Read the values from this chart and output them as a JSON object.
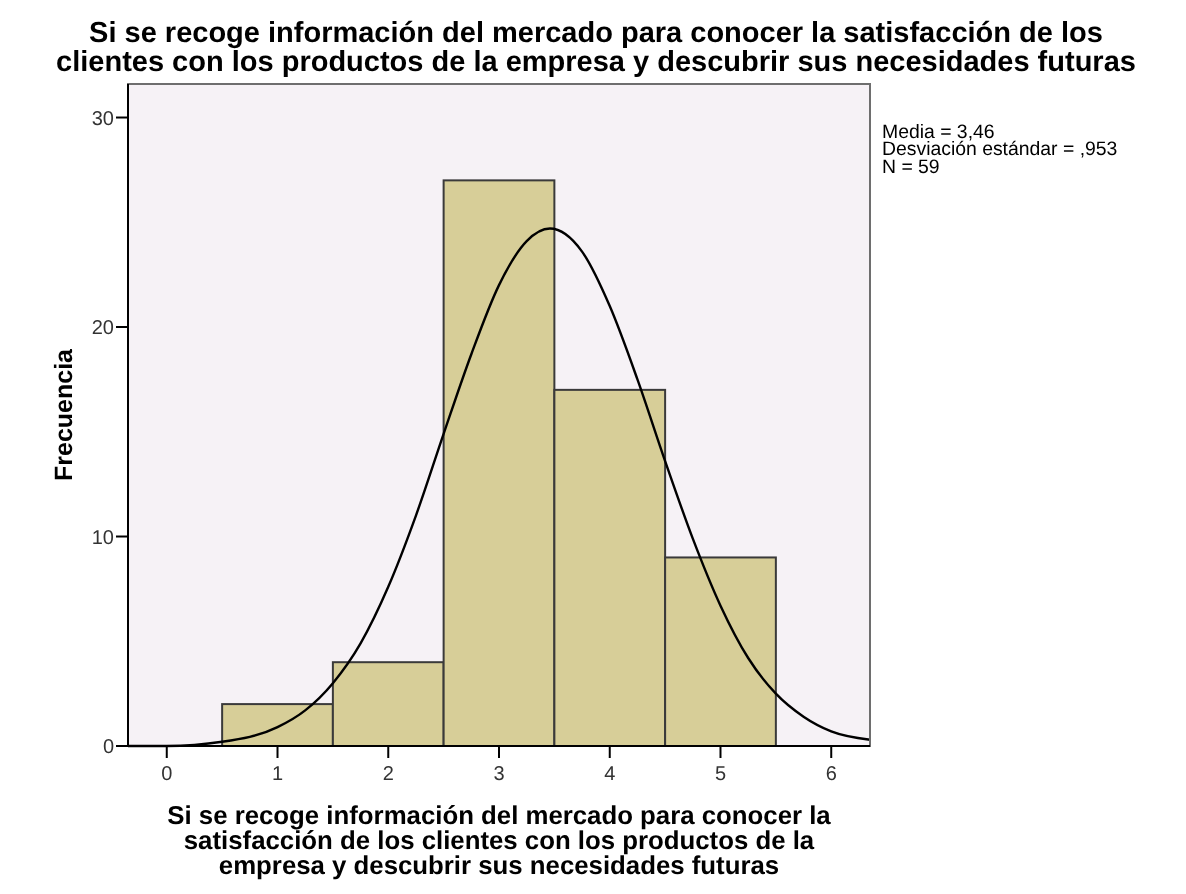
{
  "chart_data": {
    "type": "histogram",
    "title": "Si se recoge información del mercado para conocer la satisfacción de los\nclientes con los productos de la empresa y descubrir sus necesidades futuras",
    "xlabel": "Si se recoge información del mercado para conocer la\nsatisfacción de los clientes con los productos de la\nempresa y descubrir sus necesidades futuras",
    "ylabel": "Frecuencia",
    "bins": [
      0.5,
      1.5,
      2.5,
      3.5,
      4.5,
      5.5
    ],
    "values": [
      2,
      4,
      27,
      17,
      9
    ],
    "color": "#d7ce98",
    "series": [
      {
        "type": "line",
        "color": "#000000",
        "x": [
          -0.35,
          0,
          0.5,
          1,
          1.25,
          1.5,
          1.75,
          2,
          2.25,
          2.5,
          2.75,
          3,
          3.25,
          3.46,
          3.75,
          4,
          4.25,
          4.5,
          4.75,
          5,
          5.25,
          5.5,
          5.75,
          6,
          6.35
        ],
        "values": [
          0,
          0,
          0.2,
          0.9,
          1.7,
          3,
          4.9,
          7.6,
          11,
          14.9,
          18.7,
          22,
          24.1,
          24.7,
          23.6,
          21,
          17.5,
          13.6,
          9.9,
          6.7,
          4.2,
          2.5,
          1.4,
          0.7,
          0.3
        ]
      }
    ],
    "xlim": [
      -0.35,
      6.35
    ],
    "ylim": [
      0,
      31.6
    ],
    "xticks": [
      0,
      1,
      2,
      3,
      4,
      5,
      6
    ],
    "yticks": [
      0,
      10,
      20,
      30
    ],
    "annotations": [
      "Media = 3,46",
      "Desviación estándar = ,953",
      "N = 59"
    ]
  }
}
